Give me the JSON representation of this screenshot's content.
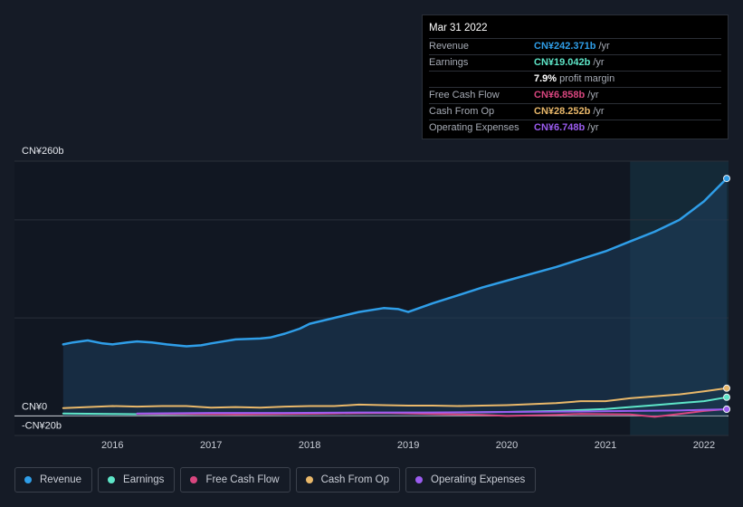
{
  "tooltip": {
    "date": "Mar 31 2022",
    "rows": [
      {
        "label": "Revenue",
        "value": "CN¥242.371b",
        "unit": "/yr",
        "color": "#2f9ee8"
      },
      {
        "label": "Earnings",
        "value": "CN¥19.042b",
        "unit": "/yr",
        "color": "#5ee6c8"
      },
      {
        "label": "",
        "value": "7.9%",
        "unit": "profit margin",
        "color": "#ffffff"
      },
      {
        "label": "Free Cash Flow",
        "value": "CN¥6.858b",
        "unit": "/yr",
        "color": "#d9467f"
      },
      {
        "label": "Cash From Op",
        "value": "CN¥28.252b",
        "unit": "/yr",
        "color": "#e9b86a"
      },
      {
        "label": "Operating Expenses",
        "value": "CN¥6.748b",
        "unit": "/yr",
        "color": "#9b5cf0"
      }
    ]
  },
  "chart_data": {
    "type": "line",
    "y_labels": {
      "top": "CN¥260b",
      "zero": "CN¥0",
      "bottom": "-CN¥20b"
    },
    "ylim": [
      -20,
      260
    ],
    "x_ticks": [
      "2016",
      "2017",
      "2018",
      "2019",
      "2020",
      "2021",
      "2022"
    ],
    "x_tick_values": [
      2016,
      2017,
      2018,
      2019,
      2020,
      2021,
      2022
    ],
    "xlim": [
      2015.3,
      2022.23
    ],
    "highlight_start": 2021.25,
    "series": [
      {
        "name": "Revenue",
        "color": "#2f9ee8",
        "fill": true,
        "width": 2.5,
        "x": [
          2015.5,
          2015.6,
          2015.75,
          2015.9,
          2016.0,
          2016.15,
          2016.25,
          2016.4,
          2016.55,
          2016.75,
          2016.9,
          2017.0,
          2017.25,
          2017.5,
          2017.6,
          2017.75,
          2017.9,
          2018.0,
          2018.25,
          2018.5,
          2018.75,
          2018.9,
          2019.0,
          2019.25,
          2019.5,
          2019.75,
          2020.0,
          2020.25,
          2020.5,
          2020.75,
          2021.0,
          2021.25,
          2021.5,
          2021.75,
          2022.0,
          2022.23
        ],
        "y": [
          73,
          75,
          77,
          74,
          73,
          75,
          76,
          75,
          73,
          71,
          72,
          74,
          78,
          79,
          80,
          84,
          89,
          94,
          100,
          106,
          110,
          109,
          106,
          115,
          123,
          131,
          138,
          145,
          152,
          160,
          168,
          178,
          188,
          200,
          219,
          242.371
        ]
      },
      {
        "name": "Earnings",
        "color": "#5ee6c8",
        "fill": false,
        "width": 2,
        "x": [
          2015.5,
          2016.0,
          2016.5,
          2017.0,
          2017.5,
          2018.0,
          2018.5,
          2019.0,
          2019.5,
          2020.0,
          2020.5,
          2021.0,
          2021.5,
          2022.0,
          2022.23
        ],
        "y": [
          2.5,
          2,
          1.5,
          1.8,
          2,
          2.5,
          3,
          3,
          3.5,
          4,
          5,
          7,
          11,
          15,
          19.042
        ]
      },
      {
        "name": "Free Cash Flow",
        "color": "#d9467f",
        "fill": false,
        "width": 2,
        "x": [
          2016.25,
          2016.75,
          2017.25,
          2017.75,
          2018.25,
          2018.75,
          2019.25,
          2019.75,
          2020.0,
          2020.5,
          2020.75,
          2021.25,
          2021.5,
          2021.75,
          2022.0,
          2022.23
        ],
        "y": [
          2,
          2,
          1.5,
          2,
          2.5,
          3,
          2,
          1,
          0,
          1,
          2,
          1.5,
          -1,
          2,
          5,
          6.858
        ]
      },
      {
        "name": "Cash From Op",
        "color": "#e9b86a",
        "fill": false,
        "width": 2,
        "x": [
          2015.5,
          2015.75,
          2016.0,
          2016.25,
          2016.5,
          2016.75,
          2017.0,
          2017.25,
          2017.5,
          2017.75,
          2018.0,
          2018.25,
          2018.5,
          2018.75,
          2019.0,
          2019.25,
          2019.5,
          2019.75,
          2020.0,
          2020.25,
          2020.5,
          2020.75,
          2021.0,
          2021.25,
          2021.5,
          2021.75,
          2022.0,
          2022.23
        ],
        "y": [
          8,
          9,
          10,
          9.5,
          10,
          10,
          8.5,
          9,
          8.5,
          9.5,
          10,
          10,
          11.5,
          11,
          10.5,
          10.5,
          10,
          10.5,
          11,
          12,
          13,
          15,
          15,
          18,
          20,
          22,
          25,
          28.252
        ]
      },
      {
        "name": "Operating Expenses",
        "color": "#9b5cf0",
        "fill": false,
        "width": 2,
        "x": [
          2016.25,
          2017.0,
          2017.75,
          2018.5,
          2019.25,
          2020.0,
          2020.75,
          2021.25,
          2021.75,
          2022.0,
          2022.23
        ],
        "y": [
          2.5,
          3,
          3,
          3.5,
          3.5,
          4,
          4.5,
          5,
          5.5,
          6.2,
          6.748
        ]
      }
    ]
  },
  "legend": [
    {
      "label": "Revenue",
      "color": "#2f9ee8"
    },
    {
      "label": "Earnings",
      "color": "#5ee6c8"
    },
    {
      "label": "Free Cash Flow",
      "color": "#d9467f"
    },
    {
      "label": "Cash From Op",
      "color": "#e9b86a"
    },
    {
      "label": "Operating Expenses",
      "color": "#9b5cf0"
    }
  ]
}
